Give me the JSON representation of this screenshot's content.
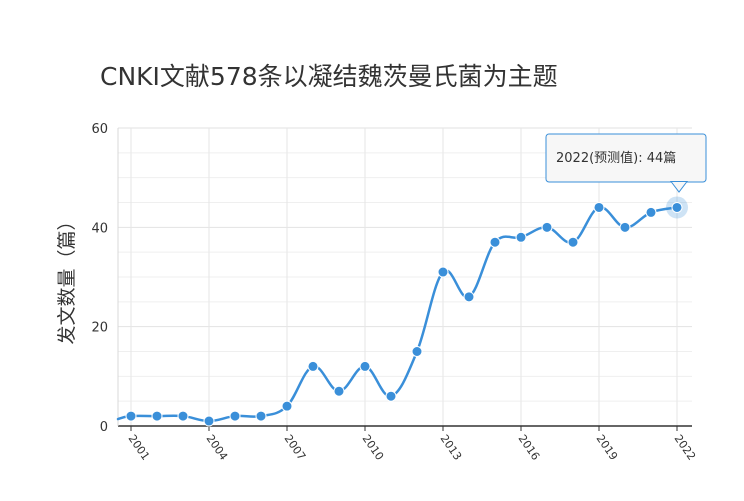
{
  "chart_data": {
    "type": "line",
    "title": "CNKI文献578条以凝结魏茨曼氏菌为主题",
    "xlabel": "",
    "ylabel": "发文数量（篇）",
    "ylim": [
      0,
      60
    ],
    "yticks": [
      "0",
      "20",
      "40",
      "60"
    ],
    "xtick_labels": [
      "2001",
      "2004",
      "2007",
      "2010",
      "2013",
      "2016",
      "2019",
      "2022"
    ],
    "x": [
      2001,
      2002,
      2003,
      2004,
      2005,
      2006,
      2007,
      2008,
      2009,
      2010,
      2011,
      2012,
      2013,
      2014,
      2015,
      2016,
      2017,
      2018,
      2019,
      2020,
      2021,
      2022
    ],
    "values": [
      2,
      2,
      2,
      1,
      2,
      2,
      4,
      12,
      7,
      12,
      6,
      15,
      31,
      26,
      37,
      38,
      40,
      37,
      44,
      40,
      43,
      44
    ],
    "grid": true,
    "line_color": "#3a8fd9",
    "tooltip": {
      "text": "2022(预测值): 44篇",
      "border_color": "#3a8fd9"
    }
  }
}
